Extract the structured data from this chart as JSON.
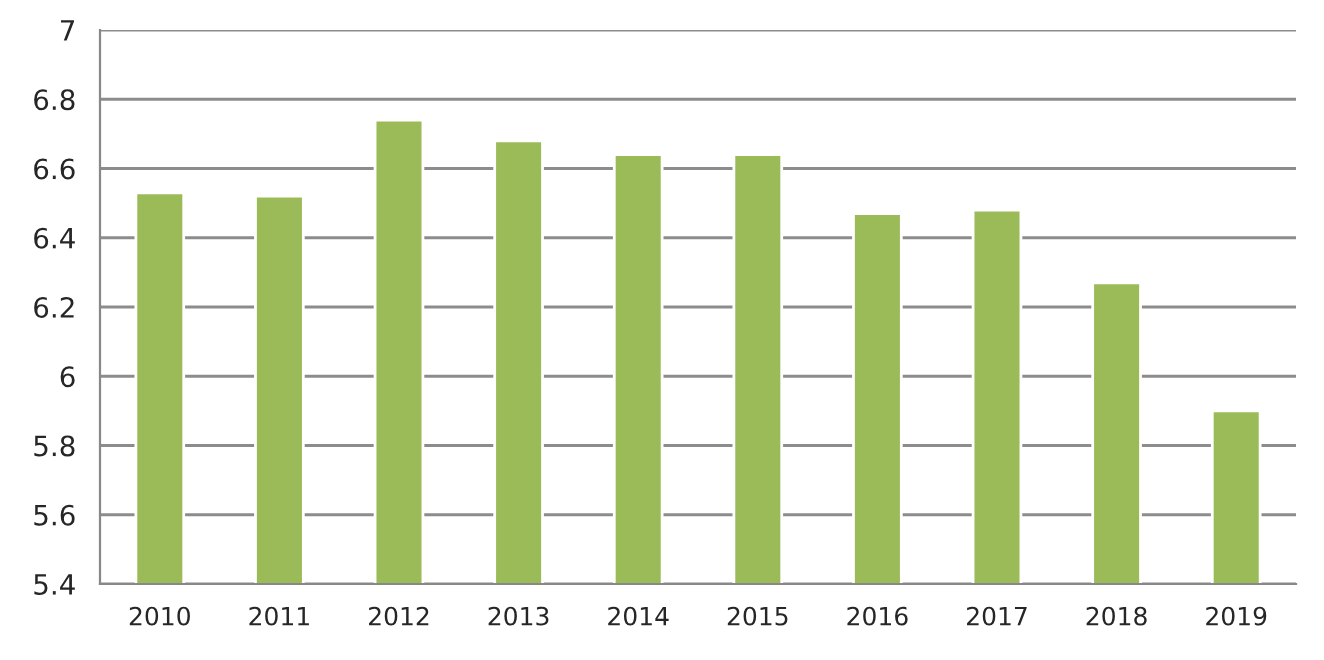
{
  "chart_data": {
    "type": "bar",
    "categories": [
      "2010",
      "2011",
      "2012",
      "2013",
      "2014",
      "2015",
      "2016",
      "2017",
      "2018",
      "2019"
    ],
    "values": [
      6.53,
      6.52,
      6.74,
      6.68,
      6.64,
      6.64,
      6.47,
      6.48,
      6.27,
      5.9
    ],
    "color": "#9bbb59",
    "ylim": [
      5.4,
      7
    ],
    "yticks": [
      {
        "value": 5.4,
        "label": "5.4"
      },
      {
        "value": 5.6,
        "label": "5.6"
      },
      {
        "value": 5.8,
        "label": "5.8"
      },
      {
        "value": 6,
        "label": "6"
      },
      {
        "value": 6.2,
        "label": "6.2"
      },
      {
        "value": 6.4,
        "label": "6.4"
      },
      {
        "value": 6.6,
        "label": "6.6"
      },
      {
        "value": 6.8,
        "label": "6.8"
      },
      {
        "value": 7,
        "label": "7"
      }
    ],
    "grid": "y"
  }
}
